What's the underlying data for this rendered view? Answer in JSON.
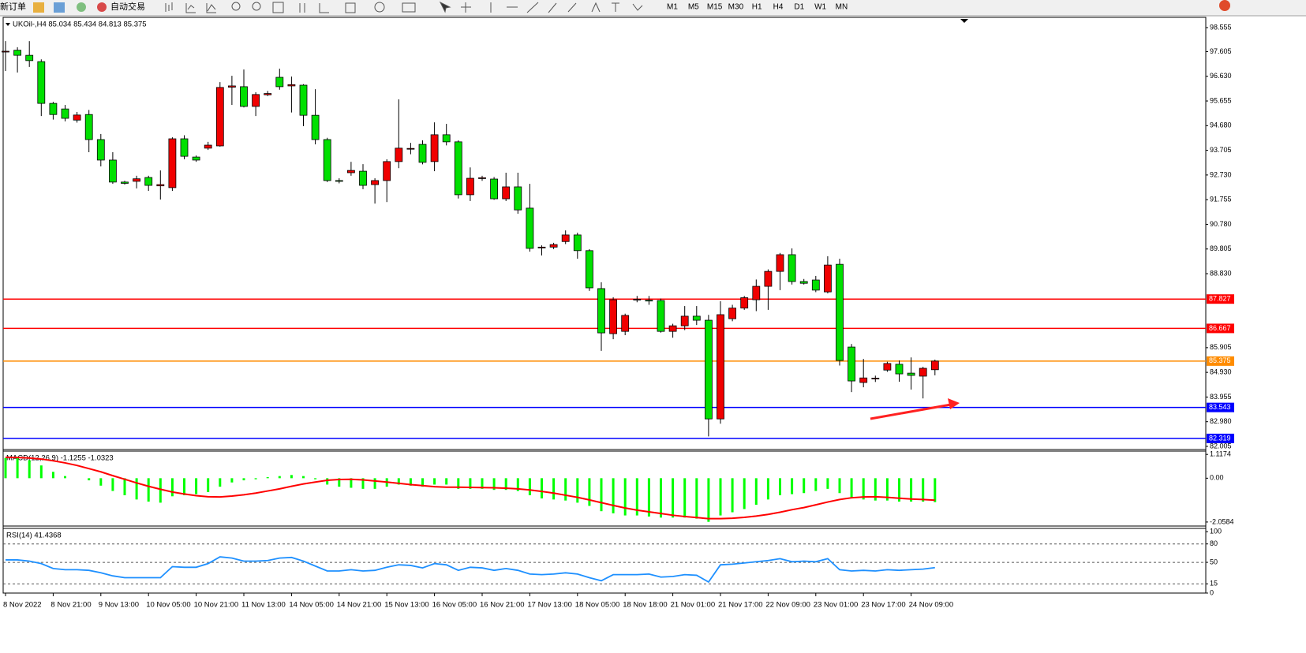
{
  "toolbar": {
    "order": "新订单",
    "autotrade": "自动交易",
    "timeframes": [
      "M1",
      "M5",
      "M15",
      "M30",
      "H1",
      "H4",
      "D1",
      "W1",
      "MN"
    ]
  },
  "chart_data": [
    {
      "type": "candlestick",
      "title": "UKOil-,H4 85.034 85.434 84.813 85.375",
      "up_color": "#f00000",
      "down_color": "#00e000",
      "categories": [
        "8 Nov 2022",
        null,
        null,
        null,
        "8 Nov 21:00",
        null,
        null,
        null,
        "9 Nov 13:00",
        null,
        null,
        null,
        "10 Nov 05:00",
        null,
        null,
        null,
        "10 Nov 21:00",
        null,
        null,
        null,
        "11 Nov 13:00",
        null,
        null,
        null,
        "14 Nov 05:00",
        null,
        null,
        null,
        "14 Nov 21:00",
        null,
        null,
        null,
        "15 Nov 13:00",
        null,
        null,
        null,
        "16 Nov 05:00",
        null,
        null,
        null,
        "16 Nov 21:00",
        null,
        null,
        null,
        "17 Nov 13:00",
        null,
        null,
        null,
        "18 Nov 05:00",
        null,
        null,
        null,
        "18 Nov 18:00",
        null,
        null,
        null,
        "21 Nov 01:00",
        null,
        null,
        null,
        "21 Nov 17:00",
        null,
        null,
        null,
        "22 Nov 09:00",
        null,
        null,
        null,
        "23 Nov 01:00",
        null,
        null,
        null,
        "23 Nov 17:00",
        null,
        null,
        null,
        "24 Nov 09:00",
        null,
        null
      ],
      "open": [
        97.6,
        97.66,
        97.46,
        97.21,
        95.56,
        95.34,
        94.9,
        95.12,
        94.13,
        93.32,
        92.45,
        92.48,
        92.63,
        92.3,
        92.23,
        94.16,
        93.44,
        93.79,
        93.88,
        96.2,
        96.22,
        95.44,
        95.9,
        96.59,
        96.25,
        96.28,
        95.09,
        94.13,
        92.51,
        92.82,
        92.88,
        92.35,
        92.51,
        93.26,
        93.75,
        93.94,
        93.26,
        94.32,
        94.04,
        91.95,
        92.6,
        92.57,
        91.79,
        92.26,
        91.42,
        89.87,
        89.88,
        90.1,
        90.36,
        89.74,
        88.24,
        86.46,
        86.55,
        87.8,
        87.78,
        87.77,
        86.55,
        86.77,
        87.15,
        86.99,
        83.09,
        87.05,
        87.47,
        87.8,
        88.33,
        88.92,
        89.58,
        88.52,
        88.58,
        88.11,
        89.2,
        85.93,
        84.53,
        84.68,
        85.02,
        85.25,
        84.9,
        84.78,
        85.034
      ],
      "high": [
        98.02,
        97.78,
        98.02,
        97.3,
        95.62,
        95.5,
        95.22,
        95.3,
        94.35,
        93.63,
        92.5,
        92.7,
        92.7,
        92.91,
        94.22,
        94.3,
        93.5,
        94.04,
        96.4,
        96.65,
        96.9,
        96.0,
        96.05,
        96.93,
        96.62,
        96.32,
        96.12,
        94.2,
        92.6,
        93.25,
        93.16,
        92.6,
        93.35,
        95.72,
        94.0,
        94.1,
        94.81,
        94.75,
        94.1,
        93.03,
        92.7,
        92.65,
        92.82,
        92.82,
        92.38,
        89.95,
        90.05,
        90.54,
        90.45,
        89.8,
        88.49,
        87.9,
        87.25,
        87.95,
        87.95,
        87.85,
        86.85,
        87.55,
        87.55,
        87.2,
        87.74,
        87.6,
        87.95,
        88.6,
        89.0,
        89.65,
        89.83,
        88.62,
        88.74,
        89.52,
        89.42,
        86.05,
        85.46,
        84.8,
        85.35,
        85.4,
        85.52,
        85.15,
        85.434
      ],
      "low": [
        96.84,
        96.78,
        97.0,
        95.06,
        94.92,
        94.85,
        94.8,
        93.63,
        93.07,
        92.38,
        92.35,
        92.2,
        92.1,
        91.76,
        92.1,
        93.35,
        93.25,
        93.72,
        93.85,
        95.5,
        95.4,
        95.06,
        95.85,
        96.1,
        95.2,
        94.66,
        93.94,
        92.45,
        92.4,
        92.7,
        92.17,
        91.6,
        91.66,
        93.0,
        93.55,
        93.15,
        92.88,
        93.9,
        91.8,
        91.7,
        92.5,
        91.75,
        91.7,
        91.2,
        89.7,
        89.55,
        89.8,
        90.0,
        89.42,
        88.15,
        85.78,
        86.24,
        86.4,
        87.7,
        87.6,
        86.5,
        86.3,
        86.6,
        86.8,
        82.4,
        82.9,
        86.95,
        87.4,
        87.35,
        87.4,
        88.18,
        88.4,
        88.4,
        88.1,
        88.05,
        85.2,
        84.15,
        84.34,
        84.55,
        84.95,
        84.56,
        84.25,
        83.9,
        84.813
      ],
      "close": [
        97.62,
        97.46,
        97.25,
        95.56,
        95.12,
        94.97,
        95.1,
        94.13,
        93.32,
        92.45,
        92.4,
        92.58,
        92.32,
        92.35,
        94.16,
        93.47,
        93.32,
        93.91,
        96.19,
        96.25,
        95.44,
        95.91,
        95.95,
        96.22,
        96.3,
        95.09,
        94.13,
        92.51,
        92.48,
        92.91,
        92.32,
        92.51,
        93.26,
        93.79,
        93.78,
        93.23,
        94.32,
        94.04,
        91.95,
        92.6,
        92.62,
        91.79,
        92.26,
        91.35,
        89.83,
        89.88,
        89.98,
        90.36,
        89.74,
        88.27,
        86.49,
        87.8,
        87.18,
        87.82,
        87.77,
        86.55,
        86.77,
        87.15,
        86.99,
        83.09,
        87.21,
        87.47,
        87.88,
        88.33,
        88.92,
        89.58,
        88.52,
        88.45,
        88.18,
        89.17,
        85.4,
        84.59,
        84.71,
        84.7,
        85.28,
        84.87,
        84.81,
        85.09,
        85.375
      ],
      "levels": [
        {
          "value": 87.827,
          "color": "#ff0000"
        },
        {
          "value": 86.667,
          "color": "#ff0000"
        },
        {
          "value": 85.375,
          "color": "#ff8c00"
        },
        {
          "value": 83.543,
          "color": "#0000ff"
        },
        {
          "value": 82.319,
          "color": "#0000ff"
        }
      ],
      "ylim": [
        81.88,
        98.96
      ],
      "yticks": [
        98.555,
        97.605,
        {
          "value": 96.63,
          "label": "96.630"
        },
        95.655,
        {
          "value": 94.68,
          "label": "94.680"
        },
        93.705,
        {
          "value": 92.73,
          "label": "92.730"
        },
        91.755,
        {
          "value": 90.78,
          "label": "90.780"
        },
        89.805,
        {
          "value": 88.83,
          "label": "88.830"
        },
        85.905,
        {
          "value": 84.93,
          "label": "84.930"
        },
        83.955,
        {
          "value": 82.98,
          "label": "82.980"
        },
        82.005
      ],
      "grid": false
    },
    {
      "type": "bar",
      "title": "MACD(12,26,9) -1.1255 -1.0323",
      "color": "#00ff00",
      "signal_color": "#ff0000",
      "values": [
        0.95,
        0.95,
        0.85,
        0.6,
        0.3,
        0.1,
        0.0,
        -0.1,
        -0.35,
        -0.6,
        -0.8,
        -1.0,
        -1.1,
        -1.15,
        -0.85,
        -0.8,
        -0.75,
        -0.65,
        -0.4,
        -0.2,
        -0.1,
        -0.05,
        0.05,
        0.1,
        0.15,
        0.1,
        -0.05,
        -0.3,
        -0.4,
        -0.45,
        -0.5,
        -0.5,
        -0.4,
        -0.3,
        -0.35,
        -0.4,
        -0.3,
        -0.3,
        -0.5,
        -0.5,
        -0.5,
        -0.55,
        -0.55,
        -0.6,
        -0.8,
        -0.95,
        -1.0,
        -1.05,
        -1.15,
        -1.3,
        -1.55,
        -1.65,
        -1.75,
        -1.75,
        -1.8,
        -1.85,
        -1.85,
        -1.85,
        -1.9,
        -2.05,
        -1.75,
        -1.6,
        -1.45,
        -1.25,
        -1.0,
        -0.8,
        -0.75,
        -0.7,
        -0.6,
        -0.5,
        -0.7,
        -0.9,
        -1.0,
        -1.05,
        -1.05,
        -1.1,
        -1.1,
        -1.1,
        -1.1255
      ],
      "signal": [
        0.98,
        0.97,
        0.95,
        0.9,
        0.82,
        0.72,
        0.6,
        0.45,
        0.3,
        0.12,
        -0.05,
        -0.22,
        -0.38,
        -0.52,
        -0.65,
        -0.74,
        -0.82,
        -0.87,
        -0.88,
        -0.84,
        -0.78,
        -0.7,
        -0.6,
        -0.5,
        -0.38,
        -0.27,
        -0.18,
        -0.1,
        -0.06,
        -0.05,
        -0.08,
        -0.13,
        -0.18,
        -0.24,
        -0.3,
        -0.35,
        -0.4,
        -0.42,
        -0.42,
        -0.43,
        -0.44,
        -0.45,
        -0.47,
        -0.5,
        -0.55,
        -0.62,
        -0.7,
        -0.8,
        -0.9,
        -1.02,
        -1.15,
        -1.28,
        -1.4,
        -1.5,
        -1.58,
        -1.66,
        -1.74,
        -1.8,
        -1.85,
        -1.9,
        -1.9,
        -1.88,
        -1.84,
        -1.78,
        -1.7,
        -1.6,
        -1.48,
        -1.38,
        -1.25,
        -1.12,
        -1.0,
        -0.92,
        -0.88,
        -0.87,
        -0.9,
        -0.94,
        -0.98,
        -1.0,
        -1.0323
      ],
      "ylim": [
        -2.247,
        1.273
      ],
      "yticks": [
        1.1174,
        {
          "value": 0,
          "label": "0.00"
        },
        -2.0584
      ],
      "grid": false
    },
    {
      "type": "line",
      "title": "RSI(14) 41.4368",
      "color": "#1e90ff",
      "values": [
        54,
        54,
        52,
        48,
        40,
        38,
        38,
        37,
        33,
        28,
        25,
        25,
        25,
        25,
        43,
        42,
        42,
        48,
        59,
        57,
        52,
        52,
        53,
        57,
        58,
        52,
        44,
        36,
        36,
        38,
        36,
        37,
        42,
        46,
        45,
        41,
        48,
        46,
        37,
        42,
        41,
        37,
        40,
        37,
        31,
        30,
        31,
        33,
        31,
        25,
        20,
        30,
        30,
        30,
        31,
        26,
        27,
        30,
        29,
        18,
        46,
        47,
        49,
        51,
        53,
        56,
        51,
        52,
        51,
        56,
        38,
        36,
        37,
        36,
        38,
        37,
        38,
        39,
        41.4368
      ],
      "ylim": [
        0,
        105.3
      ],
      "yticks": [
        100,
        80,
        50,
        15,
        0
      ],
      "grid": "dashed"
    }
  ]
}
